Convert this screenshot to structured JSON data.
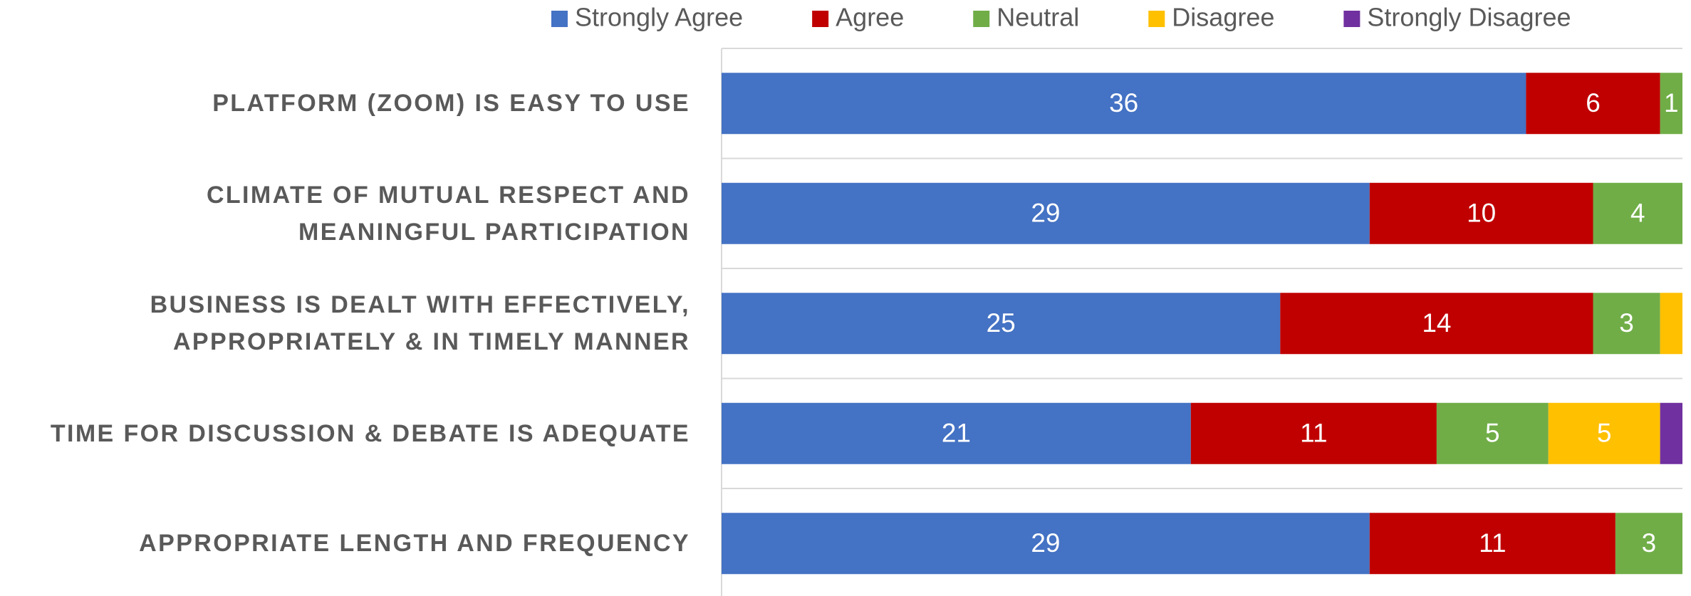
{
  "chart_data": {
    "type": "stacked_barh",
    "categories": [
      "PLATFORM (ZOOM) IS EASY TO USE",
      "CLIMATE OF MUTUAL RESPECT AND\nMEANINGFUL PARTICIPATION",
      "BUSINESS IS DEALT WITH EFFECTIVELY,\nAPPROPRIATELY & IN TIMELY MANNER",
      "TIME FOR DISCUSSION & DEBATE IS ADEQUATE",
      "APPROPRIATE LENGTH AND FREQUENCY"
    ],
    "series": [
      {
        "name": "Strongly Agree",
        "color": "#4472c4",
        "values": [
          36,
          29,
          25,
          21,
          29
        ],
        "value_labels": [
          "36",
          "29",
          "25",
          "21",
          "29"
        ]
      },
      {
        "name": "Agree",
        "color": "#c00000",
        "values": [
          6,
          10,
          14,
          11,
          11
        ],
        "value_labels": [
          "6",
          "10",
          "14",
          "11",
          "11"
        ]
      },
      {
        "name": "Neutral",
        "color": "#70ad47",
        "values": [
          1,
          4,
          3,
          5,
          3
        ],
        "value_labels": [
          "1",
          "4",
          "3",
          "5",
          "3"
        ]
      },
      {
        "name": "Disagree",
        "color": "#ffc000",
        "values": [
          0,
          0,
          1,
          5,
          0
        ],
        "value_labels": [
          null,
          null,
          null,
          "5",
          null
        ]
      },
      {
        "name": "Strongly Disagree",
        "color": "#7030a0",
        "values": [
          0,
          0,
          0,
          1,
          0
        ],
        "value_labels": [
          null,
          null,
          null,
          null,
          null
        ]
      }
    ],
    "xlim": [
      0,
      43
    ],
    "legend": "top"
  }
}
